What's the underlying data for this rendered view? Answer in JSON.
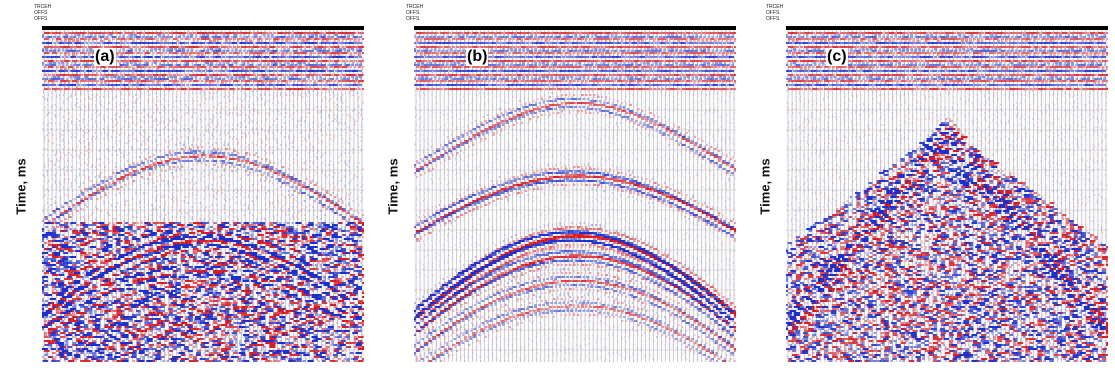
{
  "panels": [
    {
      "id": "a",
      "label": "(a)",
      "ylabel": "Time, ms"
    },
    {
      "id": "b",
      "label": "(b)",
      "ylabel": "Time, ms"
    },
    {
      "id": "c",
      "label": "(c)",
      "ylabel": "Time, ms"
    }
  ],
  "colors": {
    "positive": "#e0141e",
    "negative": "#1a2fd0",
    "trace": "#808080",
    "grid": "#c8c8c8"
  }
}
